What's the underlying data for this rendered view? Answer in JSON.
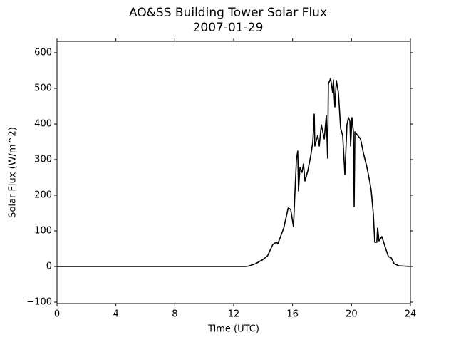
{
  "chart_data": {
    "type": "line",
    "title": "AO&SS Building Tower Solar Flux",
    "subtitle": "2007-01-29",
    "x_label": "Time (UTC)",
    "y_label": "Solar Flux (W/m^2)",
    "x": [
      0,
      12.8,
      13,
      13.5,
      14,
      14.3,
      14.66,
      14.9,
      15.0,
      15.4,
      15.7,
      15.87,
      16.06,
      16.16,
      16.26,
      16.35,
      16.4,
      16.5,
      16.64,
      16.74,
      16.84,
      17.03,
      17.22,
      17.37,
      17.47,
      17.51,
      17.71,
      17.81,
      17.95,
      18.15,
      18.29,
      18.38,
      18.43,
      18.58,
      18.72,
      18.77,
      18.87,
      18.97,
      19.11,
      19.26,
      19.4,
      19.55,
      19.69,
      19.79,
      19.89,
      19.94,
      20.03,
      20.13,
      20.18,
      20.23,
      20.42,
      20.61,
      20.81,
      21.05,
      21.24,
      21.34,
      21.48,
      21.58,
      21.72,
      21.77,
      21.87,
      22.06,
      22.26,
      22.5,
      22.7,
      22.89,
      23.2,
      24
    ],
    "series": [
      {
        "name": "Solar Flux",
        "color": "#000000",
        "values": [
          0,
          0,
          1,
          8,
          20,
          30,
          62,
          68,
          64,
          108,
          164,
          160,
          112,
          208,
          300,
          324,
          212,
          278,
          264,
          288,
          240,
          268,
          308,
          348,
          428,
          338,
          368,
          338,
          398,
          358,
          424,
          304,
          512,
          528,
          488,
          524,
          448,
          522,
          488,
          388,
          368,
          258,
          398,
          418,
          408,
          338,
          418,
          378,
          168,
          378,
          368,
          358,
          318,
          278,
          238,
          212,
          148,
          68,
          68,
          108,
          72,
          84,
          58,
          28,
          24,
          8,
          2,
          0
        ]
      }
    ],
    "xlim": [
      0,
      24
    ],
    "xticks": [
      0,
      4,
      8,
      12,
      16,
      20,
      24
    ],
    "ylim": [
      -104,
      632
    ],
    "yticks": [
      {
        "value": -100,
        "label": "−100"
      },
      0,
      100,
      200,
      300,
      400,
      500,
      600
    ]
  }
}
